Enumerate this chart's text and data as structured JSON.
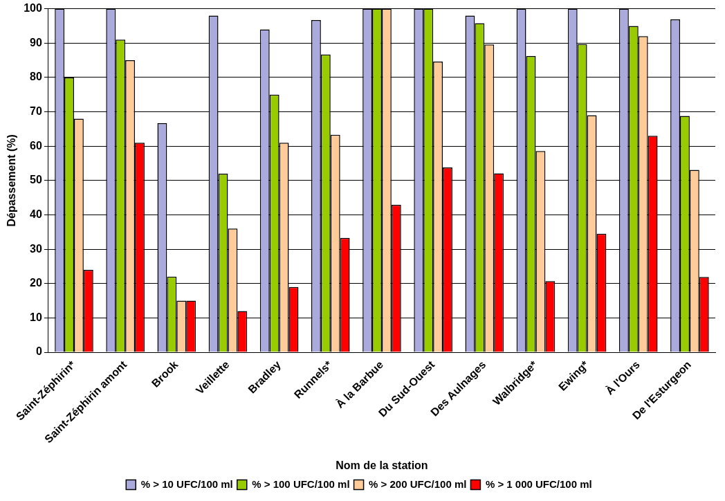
{
  "chart_data": {
    "type": "bar",
    "xlabel": "Nom de la station",
    "ylabel": "Dépassement (%)",
    "categories": [
      "Saint-Zéphirin*",
      "Saint-Zéphirin amont",
      "Brook",
      "Veillette",
      "Bradley",
      "Runnels*",
      "À la Barbue",
      "Du Sud-Ouest",
      "Des Aulnages",
      "Walbridge*",
      "Ewing*",
      "À l'Ours",
      "De l'Esturgeon"
    ],
    "series": [
      {
        "name": "% > 10 UFC/100 ml",
        "color": "#aaaadd",
        "values": [
          100,
          100,
          66.7,
          98,
          94,
          96.7,
          100,
          100,
          98,
          100,
          100,
          100,
          96.9
        ]
      },
      {
        "name": "% > 100 UFC/100 ml",
        "color": "#99cc00",
        "values": [
          80,
          91,
          22,
          52,
          75,
          86.7,
          100,
          100,
          95.8,
          86.2,
          89.7,
          95,
          68.8
        ]
      },
      {
        "name": "% > 200 UFC/100 ml",
        "color": "#ffcc99",
        "values": [
          68,
          85,
          15,
          36,
          61,
          63.3,
          100,
          84.6,
          89.6,
          58.6,
          69,
          92,
          53.1
        ]
      },
      {
        "name": "% > 1 000 UFC/100 ml",
        "color": "#ff0000",
        "values": [
          24,
          61,
          15,
          12,
          19,
          33.3,
          42.9,
          53.8,
          52.1,
          20.7,
          34.5,
          63,
          21.9
        ]
      }
    ],
    "ylim": [
      0,
      100
    ],
    "yticks": [
      0,
      10,
      20,
      30,
      40,
      50,
      60,
      70,
      80,
      90,
      100
    ],
    "grid": "y",
    "legend": "bottom"
  }
}
